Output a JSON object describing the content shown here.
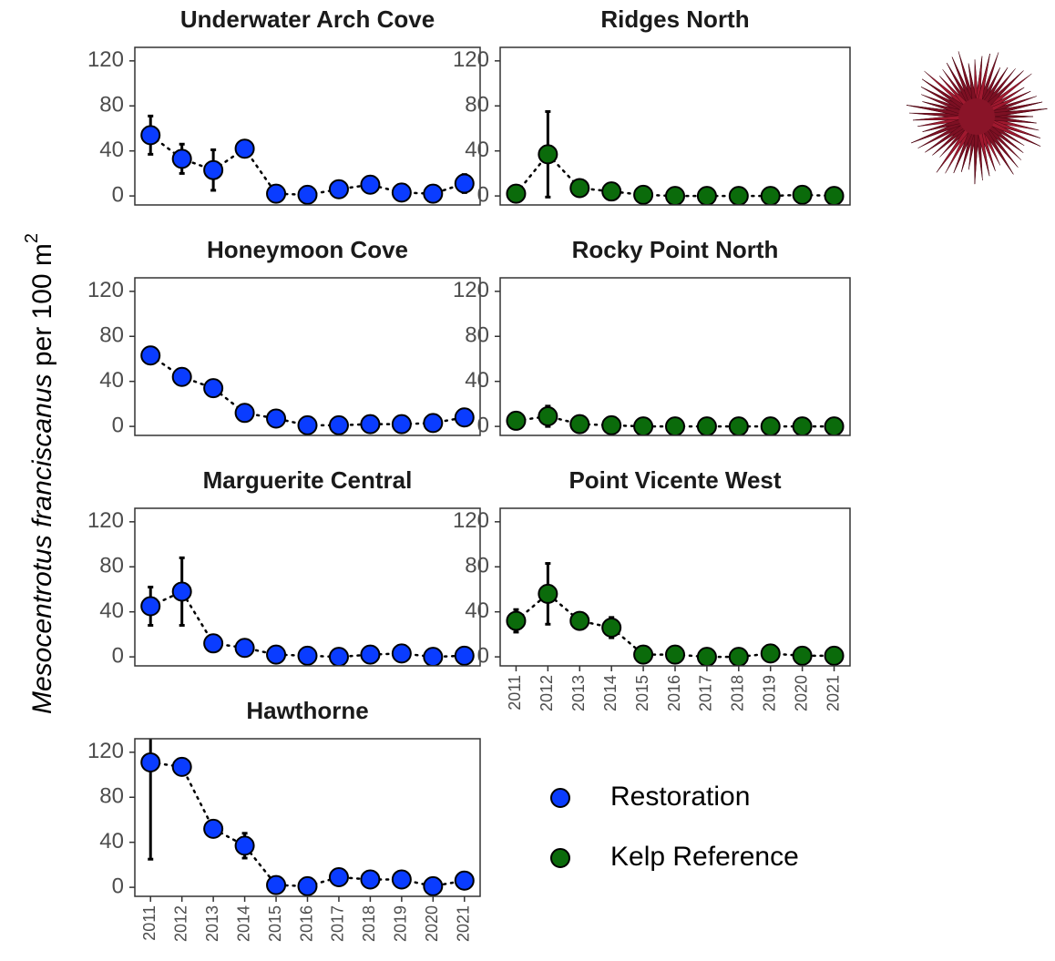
{
  "ylabel": {
    "italic": "Mesocentrotus franciscanus",
    "rest": " per 100 m",
    "sup": "2"
  },
  "chart_data": [
    {
      "type": "scatter",
      "title": "Underwater Arch Cove",
      "x": [
        2011,
        2012,
        2013,
        2014,
        2015,
        2016,
        2017,
        2018,
        2019,
        2020,
        2021
      ],
      "xlim": [
        2010.5,
        2021.5
      ],
      "ylim": [
        -8,
        132
      ],
      "yticks": [
        0,
        40,
        80,
        120
      ],
      "series": [
        {
          "name": "Restoration",
          "color": "#0a3cff",
          "values": [
            54,
            33,
            23,
            42,
            2,
            1,
            6,
            10,
            3,
            2,
            11
          ],
          "errors": [
            17,
            13,
            18,
            6,
            1,
            1,
            2,
            2,
            1,
            1,
            8
          ]
        }
      ]
    },
    {
      "type": "scatter",
      "title": "Ridges North",
      "x": [
        2011,
        2012,
        2013,
        2014,
        2015,
        2016,
        2017,
        2018,
        2019,
        2020,
        2021
      ],
      "xlim": [
        2010.5,
        2021.5
      ],
      "ylim": [
        -8,
        132
      ],
      "yticks": [
        0,
        40,
        80,
        120
      ],
      "series": [
        {
          "name": "Kelp Reference",
          "color": "#0b6b0b",
          "values": [
            2,
            37,
            7,
            4,
            1,
            0,
            0,
            0,
            0,
            1,
            0
          ],
          "errors": [
            1,
            38,
            3,
            2,
            1,
            0,
            0,
            0,
            0,
            1,
            0
          ]
        }
      ]
    },
    {
      "type": "scatter",
      "title": "Honeymoon Cove",
      "x": [
        2011,
        2012,
        2013,
        2014,
        2015,
        2016,
        2017,
        2018,
        2019,
        2020,
        2021
      ],
      "xlim": [
        2010.5,
        2021.5
      ],
      "ylim": [
        -8,
        132
      ],
      "yticks": [
        0,
        40,
        80,
        120
      ],
      "series": [
        {
          "name": "Restoration",
          "color": "#0a3cff",
          "values": [
            63,
            44,
            34,
            12,
            7,
            1,
            1,
            2,
            2,
            3,
            8
          ],
          "errors": [
            2,
            2,
            2,
            2,
            2,
            1,
            1,
            1,
            1,
            1,
            7
          ]
        }
      ]
    },
    {
      "type": "scatter",
      "title": "Rocky Point North",
      "x": [
        2011,
        2012,
        2013,
        2014,
        2015,
        2016,
        2017,
        2018,
        2019,
        2020,
        2021
      ],
      "xlim": [
        2010.5,
        2021.5
      ],
      "ylim": [
        -8,
        132
      ],
      "yticks": [
        0,
        40,
        80,
        120
      ],
      "series": [
        {
          "name": "Kelp Reference",
          "color": "#0b6b0b",
          "values": [
            5,
            9,
            2,
            1,
            0,
            0,
            0,
            0,
            0,
            0,
            0
          ],
          "errors": [
            2,
            9,
            1,
            1,
            0,
            0,
            0,
            0,
            0,
            0,
            0
          ]
        }
      ]
    },
    {
      "type": "scatter",
      "title": "Marguerite Central",
      "x": [
        2011,
        2012,
        2013,
        2014,
        2015,
        2016,
        2017,
        2018,
        2019,
        2020,
        2021
      ],
      "xlim": [
        2010.5,
        2021.5
      ],
      "ylim": [
        -8,
        132
      ],
      "yticks": [
        0,
        40,
        80,
        120
      ],
      "series": [
        {
          "name": "Restoration",
          "color": "#0a3cff",
          "values": [
            45,
            58,
            12,
            8,
            2,
            1,
            0,
            2,
            3,
            0,
            1
          ],
          "errors": [
            17,
            30,
            3,
            2,
            1,
            1,
            0,
            1,
            1,
            0,
            1
          ]
        }
      ]
    },
    {
      "type": "scatter",
      "title": "Point Vicente West",
      "x": [
        2011,
        2012,
        2013,
        2014,
        2015,
        2016,
        2017,
        2018,
        2019,
        2020,
        2021
      ],
      "xlim": [
        2010.5,
        2021.5
      ],
      "ylim": [
        -8,
        132
      ],
      "yticks": [
        0,
        40,
        80,
        120
      ],
      "xticks": [
        2011,
        2012,
        2013,
        2014,
        2015,
        2016,
        2017,
        2018,
        2019,
        2020,
        2021
      ],
      "series": [
        {
          "name": "Kelp Reference",
          "color": "#0b6b0b",
          "values": [
            32,
            56,
            32,
            26,
            2,
            2,
            0,
            0,
            3,
            1,
            1
          ],
          "errors": [
            10,
            27,
            3,
            9,
            1,
            1,
            0,
            0,
            1,
            1,
            1
          ]
        }
      ]
    },
    {
      "type": "scatter",
      "title": "Hawthorne",
      "x": [
        2011,
        2012,
        2013,
        2014,
        2015,
        2016,
        2017,
        2018,
        2019,
        2020,
        2021
      ],
      "xlim": [
        2010.5,
        2021.5
      ],
      "ylim": [
        -8,
        132
      ],
      "yticks": [
        0,
        40,
        80,
        120
      ],
      "xticks": [
        2011,
        2012,
        2013,
        2014,
        2015,
        2016,
        2017,
        2018,
        2019,
        2020,
        2021
      ],
      "series": [
        {
          "name": "Restoration",
          "color": "#0a3cff",
          "values": [
            111,
            107,
            52,
            37,
            2,
            1,
            9,
            7,
            7,
            1,
            6
          ],
          "errors": [
            86,
            2,
            3,
            11,
            1,
            1,
            3,
            2,
            2,
            1,
            2
          ]
        }
      ]
    }
  ]
}
